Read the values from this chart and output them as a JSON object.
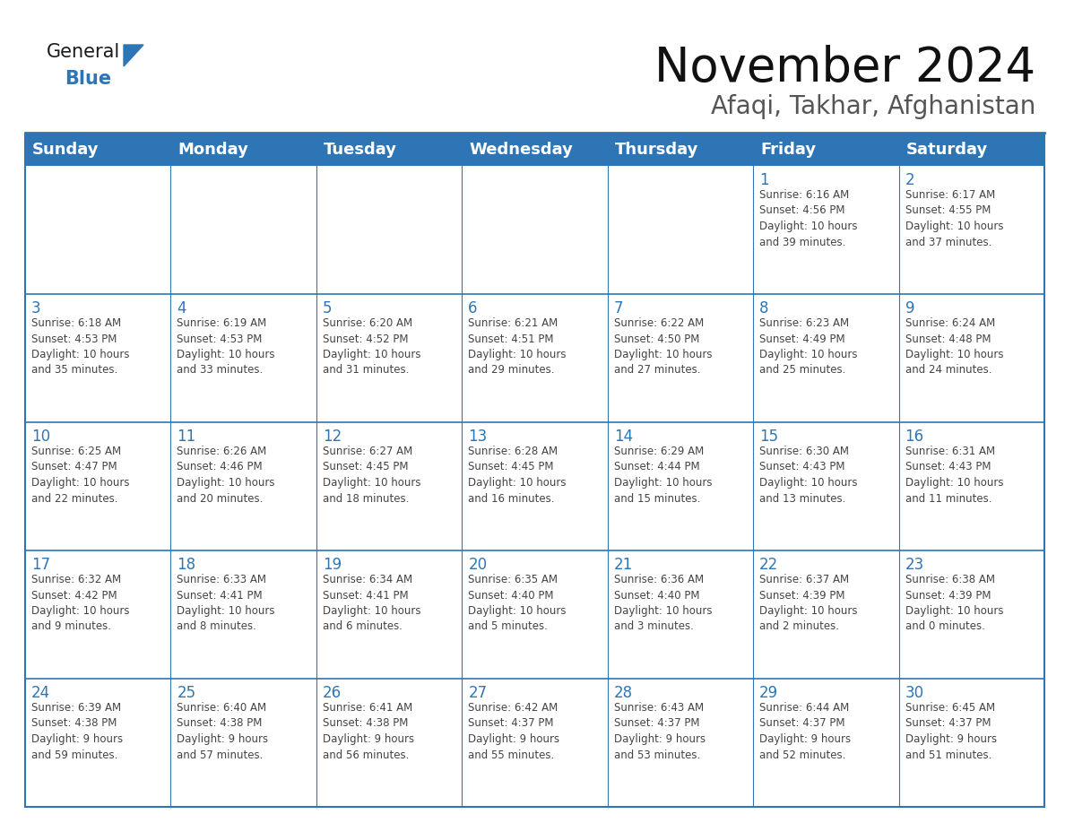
{
  "title": "November 2024",
  "subtitle": "Afaqi, Takhar, Afghanistan",
  "header_bg": "#2E75B6",
  "header_text_color": "#FFFFFF",
  "cell_bg_even": "#F2F7FC",
  "cell_bg_odd": "#FFFFFF",
  "border_color": "#2E75B6",
  "day_number_color": "#2E75B6",
  "cell_text_color": "#444444",
  "title_color": "#111111",
  "subtitle_color": "#555555",
  "days_of_week": [
    "Sunday",
    "Monday",
    "Tuesday",
    "Wednesday",
    "Thursday",
    "Friday",
    "Saturday"
  ],
  "weeks": [
    [
      {
        "day": "",
        "text": ""
      },
      {
        "day": "",
        "text": ""
      },
      {
        "day": "",
        "text": ""
      },
      {
        "day": "",
        "text": ""
      },
      {
        "day": "",
        "text": ""
      },
      {
        "day": "1",
        "text": "Sunrise: 6:16 AM\nSunset: 4:56 PM\nDaylight: 10 hours\nand 39 minutes."
      },
      {
        "day": "2",
        "text": "Sunrise: 6:17 AM\nSunset: 4:55 PM\nDaylight: 10 hours\nand 37 minutes."
      }
    ],
    [
      {
        "day": "3",
        "text": "Sunrise: 6:18 AM\nSunset: 4:53 PM\nDaylight: 10 hours\nand 35 minutes."
      },
      {
        "day": "4",
        "text": "Sunrise: 6:19 AM\nSunset: 4:53 PM\nDaylight: 10 hours\nand 33 minutes."
      },
      {
        "day": "5",
        "text": "Sunrise: 6:20 AM\nSunset: 4:52 PM\nDaylight: 10 hours\nand 31 minutes."
      },
      {
        "day": "6",
        "text": "Sunrise: 6:21 AM\nSunset: 4:51 PM\nDaylight: 10 hours\nand 29 minutes."
      },
      {
        "day": "7",
        "text": "Sunrise: 6:22 AM\nSunset: 4:50 PM\nDaylight: 10 hours\nand 27 minutes."
      },
      {
        "day": "8",
        "text": "Sunrise: 6:23 AM\nSunset: 4:49 PM\nDaylight: 10 hours\nand 25 minutes."
      },
      {
        "day": "9",
        "text": "Sunrise: 6:24 AM\nSunset: 4:48 PM\nDaylight: 10 hours\nand 24 minutes."
      }
    ],
    [
      {
        "day": "10",
        "text": "Sunrise: 6:25 AM\nSunset: 4:47 PM\nDaylight: 10 hours\nand 22 minutes."
      },
      {
        "day": "11",
        "text": "Sunrise: 6:26 AM\nSunset: 4:46 PM\nDaylight: 10 hours\nand 20 minutes."
      },
      {
        "day": "12",
        "text": "Sunrise: 6:27 AM\nSunset: 4:45 PM\nDaylight: 10 hours\nand 18 minutes."
      },
      {
        "day": "13",
        "text": "Sunrise: 6:28 AM\nSunset: 4:45 PM\nDaylight: 10 hours\nand 16 minutes."
      },
      {
        "day": "14",
        "text": "Sunrise: 6:29 AM\nSunset: 4:44 PM\nDaylight: 10 hours\nand 15 minutes."
      },
      {
        "day": "15",
        "text": "Sunrise: 6:30 AM\nSunset: 4:43 PM\nDaylight: 10 hours\nand 13 minutes."
      },
      {
        "day": "16",
        "text": "Sunrise: 6:31 AM\nSunset: 4:43 PM\nDaylight: 10 hours\nand 11 minutes."
      }
    ],
    [
      {
        "day": "17",
        "text": "Sunrise: 6:32 AM\nSunset: 4:42 PM\nDaylight: 10 hours\nand 9 minutes."
      },
      {
        "day": "18",
        "text": "Sunrise: 6:33 AM\nSunset: 4:41 PM\nDaylight: 10 hours\nand 8 minutes."
      },
      {
        "day": "19",
        "text": "Sunrise: 6:34 AM\nSunset: 4:41 PM\nDaylight: 10 hours\nand 6 minutes."
      },
      {
        "day": "20",
        "text": "Sunrise: 6:35 AM\nSunset: 4:40 PM\nDaylight: 10 hours\nand 5 minutes."
      },
      {
        "day": "21",
        "text": "Sunrise: 6:36 AM\nSunset: 4:40 PM\nDaylight: 10 hours\nand 3 minutes."
      },
      {
        "day": "22",
        "text": "Sunrise: 6:37 AM\nSunset: 4:39 PM\nDaylight: 10 hours\nand 2 minutes."
      },
      {
        "day": "23",
        "text": "Sunrise: 6:38 AM\nSunset: 4:39 PM\nDaylight: 10 hours\nand 0 minutes."
      }
    ],
    [
      {
        "day": "24",
        "text": "Sunrise: 6:39 AM\nSunset: 4:38 PM\nDaylight: 9 hours\nand 59 minutes."
      },
      {
        "day": "25",
        "text": "Sunrise: 6:40 AM\nSunset: 4:38 PM\nDaylight: 9 hours\nand 57 minutes."
      },
      {
        "day": "26",
        "text": "Sunrise: 6:41 AM\nSunset: 4:38 PM\nDaylight: 9 hours\nand 56 minutes."
      },
      {
        "day": "27",
        "text": "Sunrise: 6:42 AM\nSunset: 4:37 PM\nDaylight: 9 hours\nand 55 minutes."
      },
      {
        "day": "28",
        "text": "Sunrise: 6:43 AM\nSunset: 4:37 PM\nDaylight: 9 hours\nand 53 minutes."
      },
      {
        "day": "29",
        "text": "Sunrise: 6:44 AM\nSunset: 4:37 PM\nDaylight: 9 hours\nand 52 minutes."
      },
      {
        "day": "30",
        "text": "Sunrise: 6:45 AM\nSunset: 4:37 PM\nDaylight: 9 hours\nand 51 minutes."
      }
    ]
  ],
  "logo_general_color": "#1a1a1a",
  "logo_blue_color": "#2E75B6",
  "title_fontsize": 38,
  "subtitle_fontsize": 20,
  "header_fontsize": 13,
  "day_number_fontsize": 12,
  "cell_text_fontsize": 8.5
}
